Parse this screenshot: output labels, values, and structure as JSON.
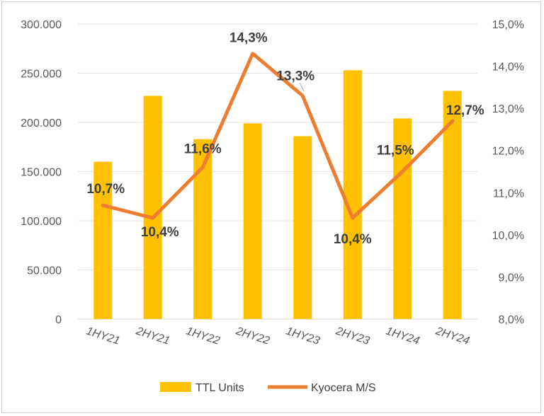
{
  "chart_data": {
    "type": "bar+line",
    "categories": [
      "1HY21",
      "2HY21",
      "1HY22",
      "2HY22",
      "1HY23",
      "2HY23",
      "1HY24",
      "2HY24"
    ],
    "series": [
      {
        "name": "TTL Units",
        "type": "bar",
        "axis": "left",
        "color": "#FFC000",
        "values": [
          160000,
          227000,
          183000,
          199000,
          186000,
          253000,
          204000,
          232000
        ]
      },
      {
        "name": "Kyocera M/S",
        "type": "line",
        "axis": "right",
        "color": "#ED7D31",
        "values": [
          10.7,
          10.4,
          11.6,
          14.3,
          13.3,
          10.4,
          11.5,
          12.7
        ],
        "labels": [
          "10,7%",
          "10,4%",
          "11,6%",
          "14,3%",
          "13,3%",
          "10,4%",
          "11,5%",
          "12,7%"
        ]
      }
    ],
    "y_left": {
      "range": [
        0,
        300000
      ],
      "ticks": [
        0,
        50000,
        100000,
        150000,
        200000,
        250000,
        300000
      ],
      "tick_labels": [
        "0",
        "50.000",
        "100.000",
        "150.000",
        "200.000",
        "250.000",
        "300.000"
      ]
    },
    "y_right": {
      "range": [
        8,
        15
      ],
      "ticks": [
        8,
        9,
        10,
        11,
        12,
        13,
        14,
        15
      ],
      "tick_labels": [
        "8,0%",
        "9,0%",
        "10,0%",
        "11,0%",
        "12,0%",
        "13,0%",
        "14,0%",
        "15,0%"
      ]
    },
    "grid": true,
    "legend_position": "bottom",
    "title": "",
    "xlabel": "",
    "ylabel": ""
  }
}
